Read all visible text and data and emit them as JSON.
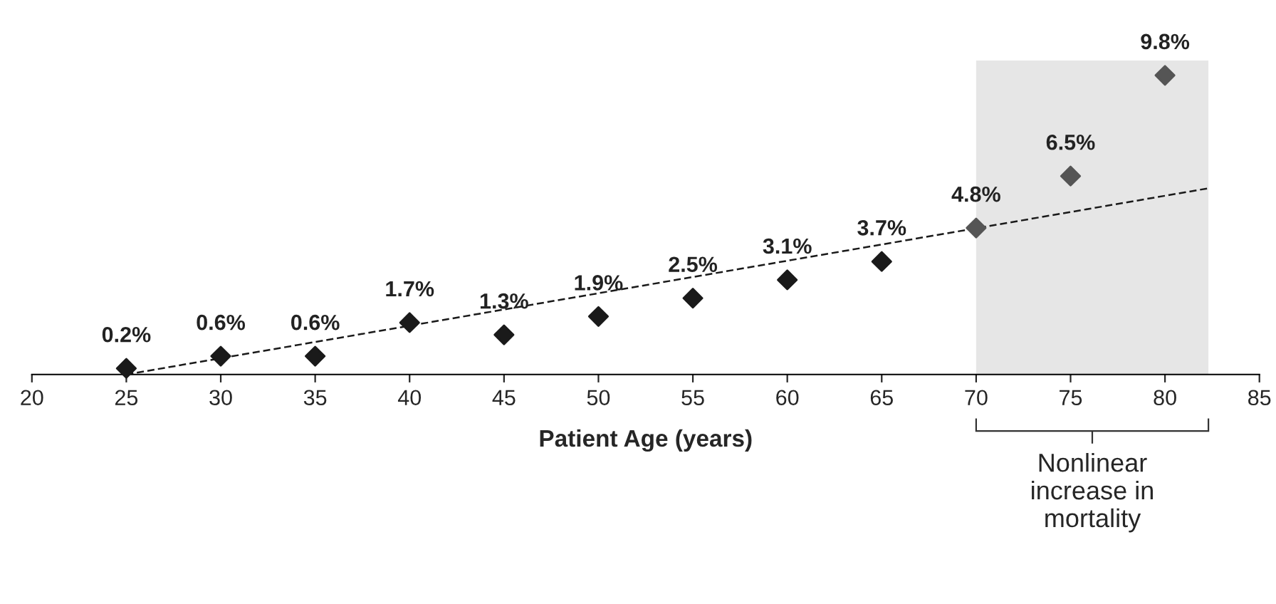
{
  "chart_data": {
    "type": "scatter",
    "xlabel": "Patient Age (years)",
    "x": [
      25,
      30,
      35,
      40,
      45,
      50,
      55,
      60,
      65,
      70,
      75,
      80
    ],
    "series": [
      {
        "values": [
          0.2,
          0.6,
          0.6,
          1.7,
          1.3,
          1.9,
          2.5,
          3.1,
          3.7,
          4.8,
          6.5,
          9.8
        ],
        "colors": [
          "#1a1a1a",
          "#1a1a1a",
          "#1a1a1a",
          "#1a1a1a",
          "#1a1a1a",
          "#1a1a1a",
          "#1a1a1a",
          "#1a1a1a",
          "#1a1a1a",
          "#555555",
          "#555555",
          "#555555"
        ],
        "value_labels": [
          "0.2%",
          "0.6%",
          "0.6%",
          "1.7%",
          "1.3%",
          "1.9%",
          "2.5%",
          "3.1%",
          "3.7%",
          "4.8%",
          "6.5%",
          "9.8%"
        ],
        "marker": "diamond"
      },
      {
        "type": "line",
        "x": [
          25,
          82.3
        ],
        "values": [
          0,
          6.1
        ],
        "color": "#1a1a1a",
        "line_style": "dashed"
      }
    ],
    "bands": [
      {
        "axis": "x",
        "from": 70,
        "to": 82.3,
        "color": "#e6e6e6"
      }
    ],
    "annotations": [
      "Nonlinear\nincrease in\nmortality"
    ],
    "xlim": [
      20,
      85
    ],
    "xticks": [
      20,
      25,
      30,
      35,
      40,
      45,
      50,
      55,
      60,
      65,
      70,
      75,
      80,
      85
    ],
    "tick_labels": "x",
    "grid": false,
    "legend": false
  }
}
